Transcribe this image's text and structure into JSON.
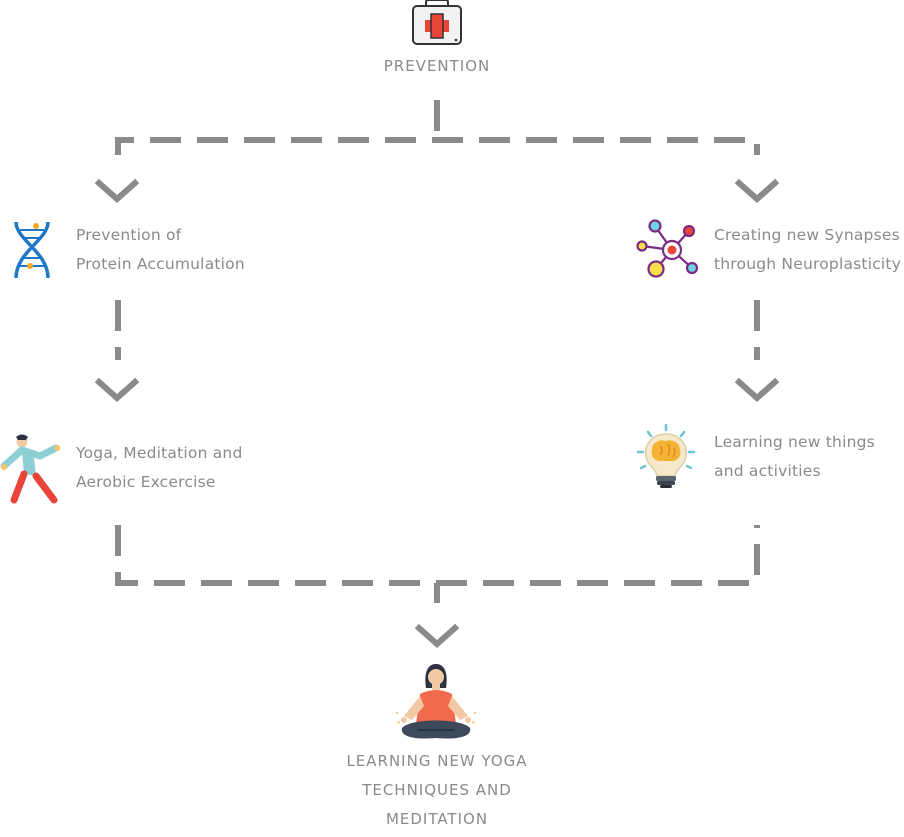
{
  "top": {
    "title": "PREVENTION",
    "icon": "first-aid-kit-icon"
  },
  "left_branch": {
    "first": {
      "lines": [
        "Prevention of",
        "Protein Accumulation"
      ],
      "icon": "dna-icon"
    },
    "second": {
      "lines": [
        "Yoga, Meditation and",
        "Aerobic Excercise"
      ],
      "icon": "exercise-person-icon"
    }
  },
  "right_branch": {
    "first": {
      "lines": [
        "Creating new Synapses",
        "through Neuroplasticity"
      ],
      "icon": "synapse-network-icon"
    },
    "second": {
      "lines": [
        "Learning new things",
        "and activities"
      ],
      "icon": "brain-lightbulb-icon"
    }
  },
  "bottom": {
    "lines": [
      "LEARNING NEW YOGA",
      "TECHNIQUES AND",
      "MEDITATION"
    ],
    "icon": "meditating-person-icon"
  },
  "colors": {
    "connector": "#8a8a8a",
    "text": "#8a8a8a",
    "dna_blue": "#1f77c9",
    "red": "#e8443a",
    "synapse_purple": "#7b2d83",
    "bulb_yellow": "#f5b335",
    "meditation_orange": "#f26a4b"
  }
}
